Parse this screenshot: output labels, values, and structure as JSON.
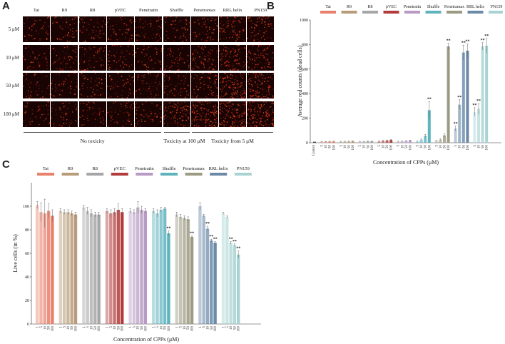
{
  "panels": {
    "a": "A",
    "b": "B",
    "c": "C"
  },
  "microscopy": {
    "columns": [
      "Tat",
      "R9",
      "R8",
      "pVEC",
      "Penetratin",
      "Shuffle",
      "Penetramax",
      "RRL helix",
      "PN159"
    ],
    "rows": [
      "5 μM",
      "10 μM",
      "50 μM",
      "100 μM"
    ],
    "groups": [
      {
        "label": "No toxicity"
      },
      {
        "label": "Toxicity at 100 μM"
      },
      {
        "label": "Toxicity from 5 μM"
      }
    ],
    "intensity": [
      [
        0.15,
        0.2,
        0.2,
        0.2,
        0.2,
        0.2,
        0.25,
        0.4,
        0.35
      ],
      [
        0.15,
        0.2,
        0.2,
        0.2,
        0.2,
        0.2,
        0.3,
        0.5,
        0.45
      ],
      [
        0.15,
        0.2,
        0.2,
        0.2,
        0.2,
        0.25,
        0.35,
        0.7,
        0.6
      ],
      [
        0.15,
        0.2,
        0.2,
        0.2,
        0.2,
        0.6,
        0.75,
        0.85,
        0.8
      ]
    ]
  },
  "chart_data": [
    {
      "panel": "B",
      "type": "bar",
      "ylabel": "Average red counts (dead cells)",
      "xlabel": "Concentration of CPPs (μM)",
      "ylim": [
        0,
        1000
      ],
      "yticks": [
        0,
        200,
        400,
        600,
        800,
        1000
      ],
      "control": {
        "label": "Control",
        "value": 8,
        "error": 3
      },
      "concentrations": [
        "5",
        "10",
        "50",
        "100"
      ],
      "series": [
        {
          "name": "Tat",
          "color": "#e8806c",
          "values": [
            8,
            9,
            10,
            10
          ],
          "errors": [
            2,
            2,
            2,
            3
          ],
          "sig": [
            "",
            "",
            "",
            ""
          ]
        },
        {
          "name": "R9",
          "color": "#b89c79",
          "values": [
            9,
            10,
            10,
            12
          ],
          "errors": [
            2,
            2,
            3,
            3
          ],
          "sig": [
            "",
            "",
            "",
            ""
          ]
        },
        {
          "name": "R8",
          "color": "#a6a6a6",
          "values": [
            9,
            10,
            12,
            12
          ],
          "errors": [
            2,
            2,
            3,
            3
          ],
          "sig": [
            "",
            "",
            "",
            ""
          ]
        },
        {
          "name": "pVEC",
          "color": "#b23b3b",
          "values": [
            12,
            16,
            18,
            22
          ],
          "errors": [
            3,
            4,
            4,
            5
          ],
          "sig": [
            "",
            "",
            "",
            ""
          ]
        },
        {
          "name": "Penetratin",
          "color": "#b89ac4",
          "values": [
            10,
            12,
            15,
            18
          ],
          "errors": [
            2,
            3,
            3,
            4
          ],
          "sig": [
            "",
            "",
            "",
            ""
          ]
        },
        {
          "name": "Shuffle",
          "color": "#5fb3bd",
          "values": [
            10,
            25,
            55,
            265
          ],
          "errors": [
            3,
            6,
            12,
            70
          ],
          "sig": [
            "",
            "",
            "",
            "**"
          ]
        },
        {
          "name": "Penetramax",
          "color": "#9c9a82",
          "values": [
            15,
            25,
            60,
            785
          ],
          "errors": [
            4,
            6,
            15,
            25
          ],
          "sig": [
            "",
            "",
            "",
            "**"
          ]
        },
        {
          "name": "RRL helix",
          "color": "#6b8aa8",
          "values": [
            115,
            310,
            735,
            750
          ],
          "errors": [
            20,
            40,
            60,
            55
          ],
          "sig": [
            "**",
            "**",
            "**",
            "**"
          ]
        },
        {
          "name": "PN159",
          "color": "#a9d3d3",
          "values": [
            250,
            275,
            785,
            790
          ],
          "errors": [
            35,
            45,
            30,
            60
          ],
          "sig": [
            "**",
            "**",
            "**",
            "**"
          ]
        }
      ]
    },
    {
      "panel": "C",
      "type": "bar",
      "ylabel": "Live cells (in %)",
      "xlabel": "Concentration of CPPs (μM)",
      "ylim": [
        0,
        120
      ],
      "yticks": [
        0,
        20,
        40,
        60,
        80,
        100
      ],
      "concentrations": [
        "1",
        "5",
        "10",
        "50",
        "100"
      ],
      "series": [
        {
          "name": "Tat",
          "color": "#e8806c",
          "values": [
            101,
            95,
            94,
            96,
            92
          ],
          "errors": [
            3,
            8,
            12,
            6,
            5
          ],
          "sig": [
            "",
            "",
            "",
            "",
            ""
          ]
        },
        {
          "name": "R9",
          "color": "#b89c79",
          "values": [
            96,
            95,
            95,
            94,
            93
          ],
          "errors": [
            2,
            2,
            2,
            2,
            2
          ],
          "sig": [
            "",
            "",
            "",
            "",
            ""
          ]
        },
        {
          "name": "R8",
          "color": "#a6a6a6",
          "values": [
            99,
            96,
            94,
            93,
            93
          ],
          "errors": [
            2,
            3,
            3,
            2,
            2
          ],
          "sig": [
            "",
            "",
            "",
            "",
            ""
          ]
        },
        {
          "name": "pVEC",
          "color": "#b23b3b",
          "values": [
            96,
            94,
            95,
            97,
            95
          ],
          "errors": [
            2,
            3,
            3,
            5,
            3
          ],
          "sig": [
            "",
            "",
            "",
            "",
            ""
          ]
        },
        {
          "name": "Penetratin",
          "color": "#b89ac4",
          "values": [
            96,
            95,
            99,
            97,
            96
          ],
          "errors": [
            2,
            2,
            5,
            3,
            2
          ],
          "sig": [
            "",
            "",
            "",
            "",
            ""
          ]
        },
        {
          "name": "Shuffle",
          "color": "#5fb3bd",
          "values": [
            96,
            94,
            97,
            98,
            77
          ],
          "errors": [
            2,
            3,
            2,
            1,
            2
          ],
          "sig": [
            "",
            "",
            "",
            "",
            "**"
          ]
        },
        {
          "name": "Penetramax",
          "color": "#9c9a82",
          "values": [
            93,
            91,
            90,
            89,
            74
          ],
          "errors": [
            2,
            2,
            2,
            2,
            1
          ],
          "sig": [
            "",
            "",
            "",
            "",
            "**"
          ]
        },
        {
          "name": "RRL helix",
          "color": "#6b8aa8",
          "values": [
            100,
            92,
            81,
            71,
            69
          ],
          "errors": [
            3,
            1,
            2,
            1,
            1
          ],
          "sig": [
            "",
            "",
            "**",
            "**",
            "**"
          ]
        },
        {
          "name": "PN159",
          "color": "#a9d3d3",
          "values": [
            94,
            91,
            69,
            67,
            59
          ],
          "errors": [
            1,
            1,
            1,
            1,
            3
          ],
          "sig": [
            "",
            "",
            "**",
            "**",
            "**"
          ]
        }
      ]
    }
  ]
}
